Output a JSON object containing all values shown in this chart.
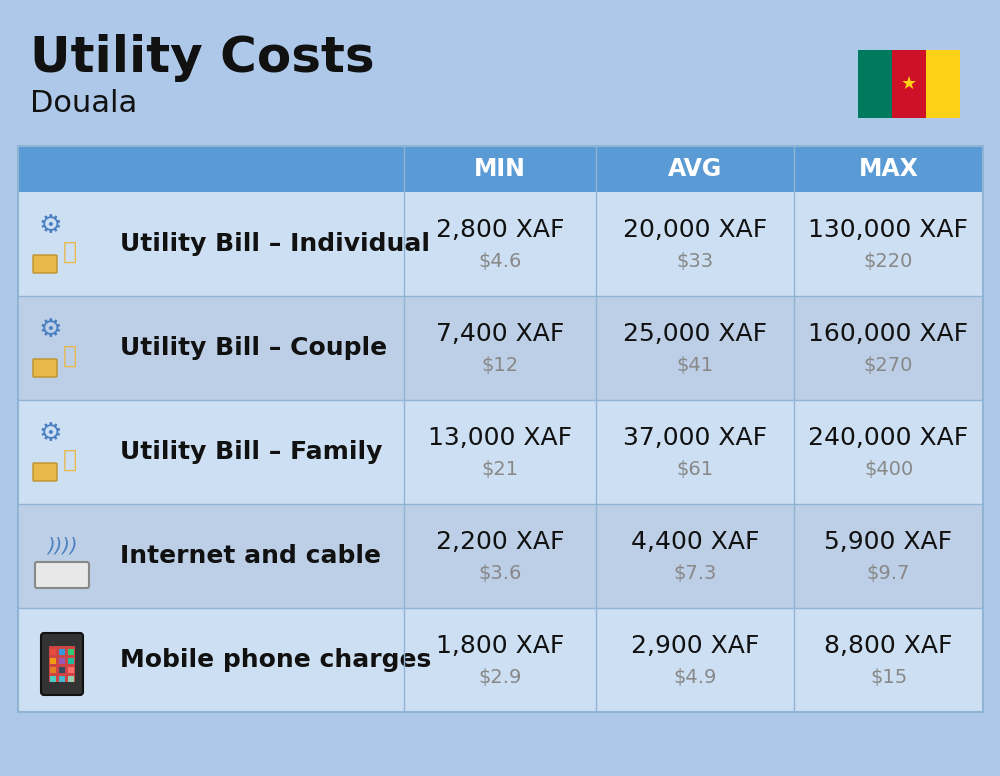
{
  "title": "Utility Costs",
  "subtitle": "Douala",
  "background_color": "#adc8e8",
  "header_bg_color": "#5b9bd5",
  "header_text_color": "#ffffff",
  "row_bg_color_light": "#cddff2",
  "row_bg_color_dark": "#bccfe6",
  "divider_color": "#90b4d4",
  "text_dark": "#111111",
  "text_gray": "#888888",
  "headers": [
    "MIN",
    "AVG",
    "MAX"
  ],
  "rows": [
    {
      "label": "Utility Bill – Individual",
      "min_xaf": "2,800 XAF",
      "min_usd": "$4.6",
      "avg_xaf": "20,000 XAF",
      "avg_usd": "$33",
      "max_xaf": "130,000 XAF",
      "max_usd": "$220"
    },
    {
      "label": "Utility Bill – Couple",
      "min_xaf": "7,400 XAF",
      "min_usd": "$12",
      "avg_xaf": "25,000 XAF",
      "avg_usd": "$41",
      "max_xaf": "160,000 XAF",
      "max_usd": "$270"
    },
    {
      "label": "Utility Bill – Family",
      "min_xaf": "13,000 XAF",
      "min_usd": "$21",
      "avg_xaf": "37,000 XAF",
      "avg_usd": "$61",
      "max_xaf": "240,000 XAF",
      "max_usd": "$400"
    },
    {
      "label": "Internet and cable",
      "min_xaf": "2,200 XAF",
      "min_usd": "$3.6",
      "avg_xaf": "4,400 XAF",
      "avg_usd": "$7.3",
      "max_xaf": "5,900 XAF",
      "max_usd": "$9.7"
    },
    {
      "label": "Mobile phone charges",
      "min_xaf": "1,800 XAF",
      "min_usd": "$2.9",
      "avg_xaf": "2,900 XAF",
      "avg_usd": "$4.9",
      "max_xaf": "8,800 XAF",
      "max_usd": "$15"
    }
  ],
  "title_fontsize": 36,
  "subtitle_fontsize": 22,
  "header_fontsize": 17,
  "cell_xaf_fontsize": 18,
  "cell_usd_fontsize": 14,
  "label_fontsize": 18,
  "flag_green": "#007A5E",
  "flag_red": "#CE1126",
  "flag_yellow": "#FCD116"
}
